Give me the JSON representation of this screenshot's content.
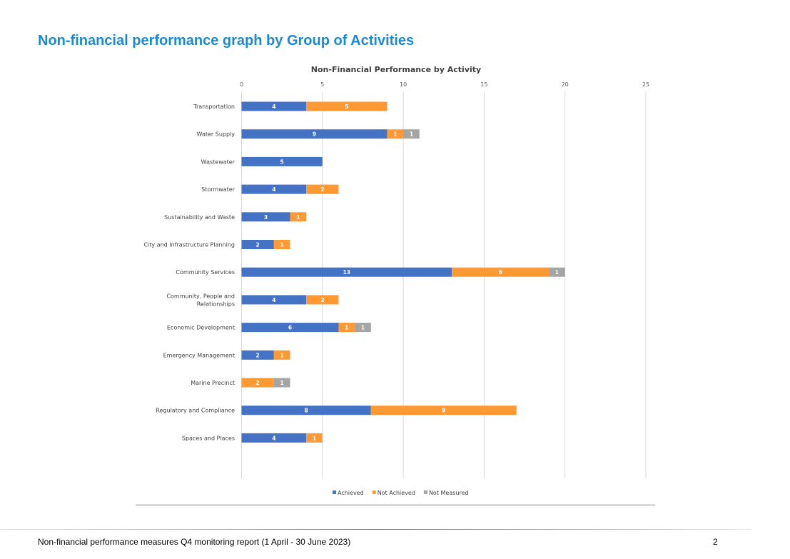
{
  "page": {
    "heading": "Non-financial performance graph by Group of Activities",
    "footer_text": "Non-financial performance measures Q4 monitoring report (1 April - 30 June 2023)",
    "page_number": "2"
  },
  "chart_data": {
    "type": "bar",
    "orientation": "horizontal",
    "stacked": true,
    "title": "Non-Financial Performance by Activity",
    "xlabel": "",
    "ylabel": "",
    "xlim": [
      0,
      25
    ],
    "ticks": [
      0,
      5,
      10,
      15,
      20,
      25
    ],
    "grid": true,
    "legend_position": "bottom",
    "categories": [
      [
        "Transportation"
      ],
      [
        "Water Supply"
      ],
      [
        "Wastewater"
      ],
      [
        "Stormwater"
      ],
      [
        "Sustainability and Waste"
      ],
      [
        "City and Infrastructure Planning"
      ],
      [
        "Community Services"
      ],
      [
        "Community, People and",
        "Relationships"
      ],
      [
        "Economic Development"
      ],
      [
        "Emergency Management"
      ],
      [
        "Marine Precinct"
      ],
      [
        "Regulatory and Compliance"
      ],
      [
        "Spaces and Places"
      ]
    ],
    "series": [
      {
        "name": "Achieved",
        "color": "#4472c4",
        "values": [
          4,
          9,
          5,
          4,
          3,
          2,
          13,
          4,
          6,
          2,
          0,
          8,
          4
        ]
      },
      {
        "name": "Not Achieved",
        "color": "#ff9933",
        "values": [
          5,
          1,
          0,
          2,
          1,
          1,
          6,
          2,
          1,
          1,
          2,
          9,
          1
        ]
      },
      {
        "name": "Not Measured",
        "color": "#a5a5a5",
        "values": [
          0,
          1,
          0,
          0,
          0,
          0,
          1,
          0,
          1,
          0,
          1,
          0,
          0
        ]
      }
    ]
  }
}
